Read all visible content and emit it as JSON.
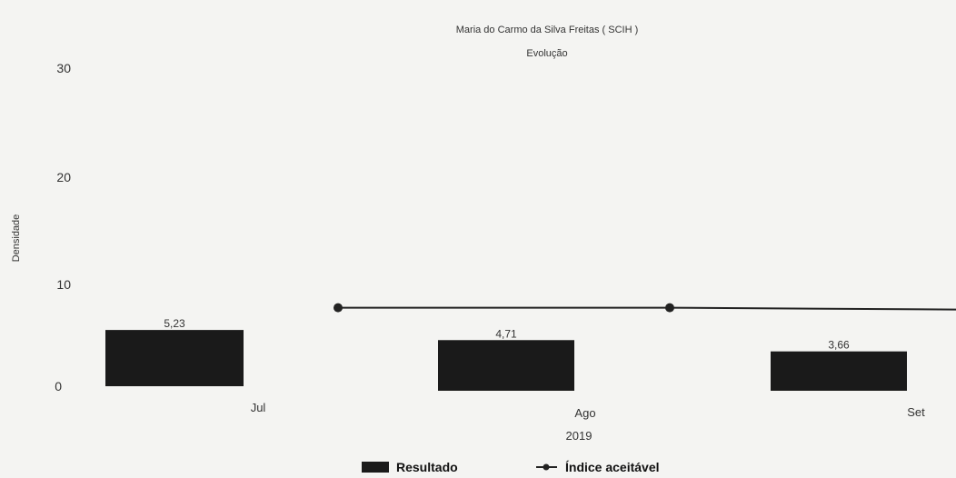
{
  "colors": {
    "bar": "#1a1a1a",
    "line": "#222222",
    "background": "#f4f4f2",
    "text": "#333333"
  },
  "chart_data": {
    "type": "bar",
    "title": "Maria do Carmo da Silva Freitas ( SCIH )",
    "subtitle": "Evolução",
    "ylabel": "Densidade",
    "xlabel": "2019",
    "ylim": [
      0,
      30
    ],
    "yticks": [
      "30",
      "20",
      "10",
      "0"
    ],
    "categories": [
      "Jul",
      "Ago",
      "Set"
    ],
    "series": [
      {
        "name": "Resultado",
        "type": "bar",
        "values": [
          5.23,
          4.71,
          3.66
        ],
        "labels": [
          "5,23",
          "4,71",
          "3,66"
        ]
      },
      {
        "name": "Índice aceitável",
        "type": "line",
        "values": [
          7.3,
          7.3,
          7.3
        ]
      }
    ],
    "legend_position": "bottom"
  }
}
